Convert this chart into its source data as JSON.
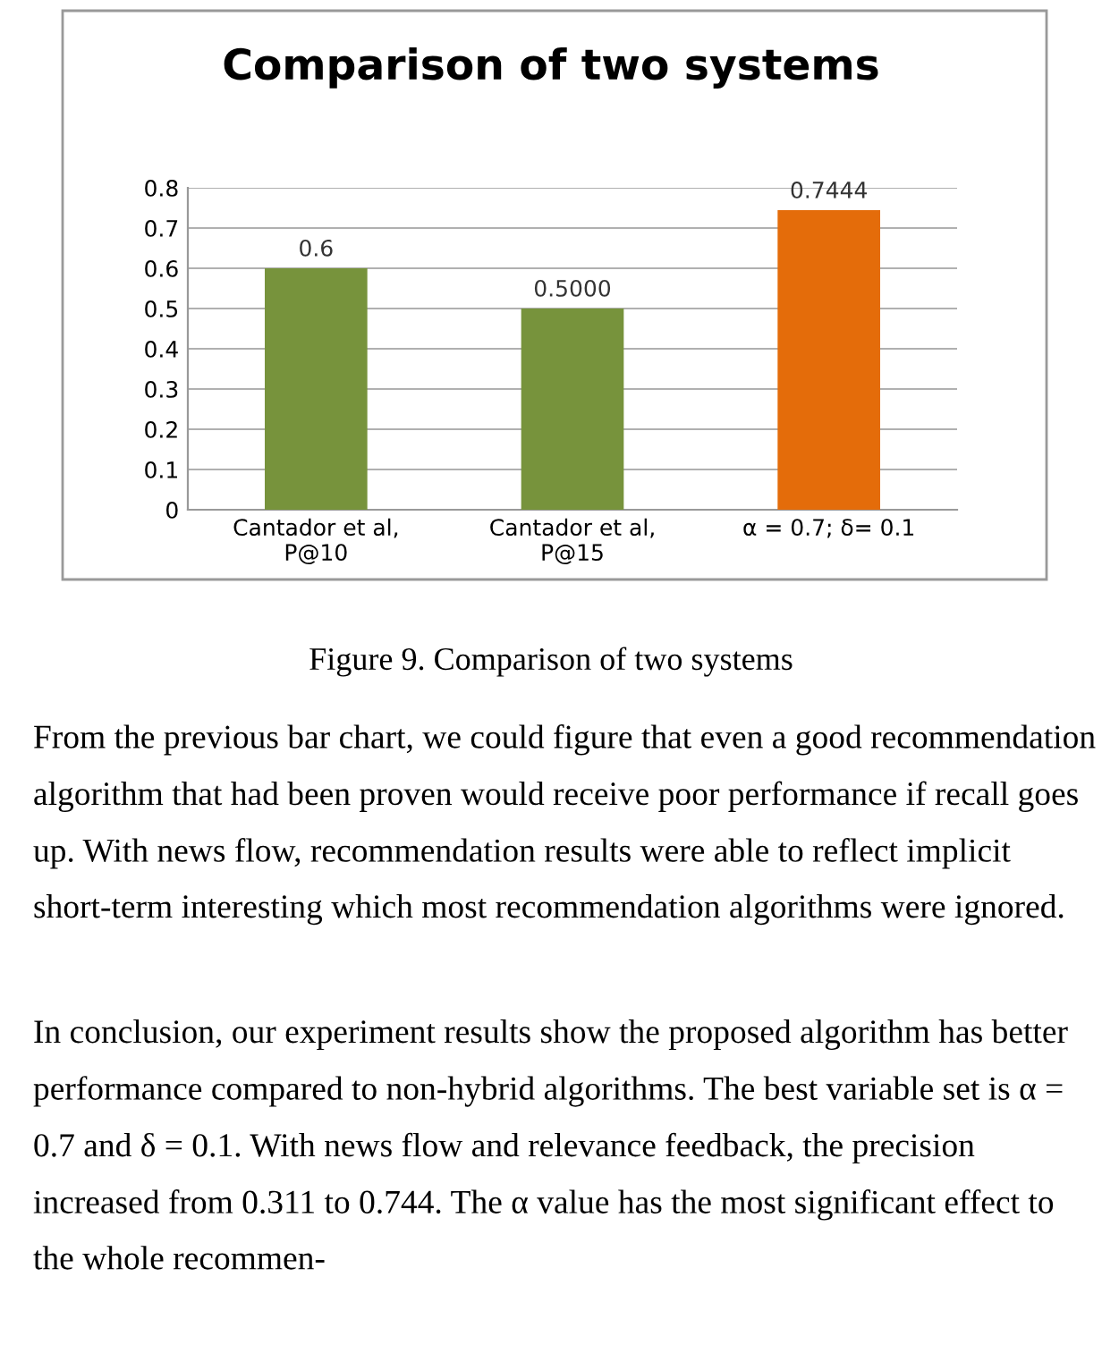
{
  "chart_data": {
    "type": "bar",
    "title": "Comparison of two systems",
    "categories": [
      "Cantador et al,\nP@10",
      "Cantador et al,\nP@15",
      "α = 0.7; δ= 0.1"
    ],
    "values": [
      0.6,
      0.5,
      0.7444
    ],
    "colors": [
      "#77933c",
      "#77933c",
      "#e46c0a"
    ],
    "value_labels": [
      "0.6",
      "0.5000",
      "0.7444"
    ],
    "ylim": [
      0,
      0.8
    ],
    "yticks": [
      0,
      0.1,
      0.2,
      0.3,
      0.4,
      0.5,
      0.6,
      0.7,
      0.8
    ],
    "grid": "y",
    "annotations": [
      "Figure 9. Comparison of two systems",
      "From the previous bar chart, we could figure that even a good recommendation algorithm that had been proven would receive poor performance if recall goes up. With news flow, recommendation results were able to reflect implicit short-term interesting which most recommendation algorithms were ignored.",
      "In conclusion, our experiment results show the proposed algorithm has better performance compared to non-hybrid algorithms. The best variable set is α = 0.7 and δ = 0.1. With news flow and relevance feedback, the precision increased from 0.311 to 0.744. The α value has the most significant effect to the whole recommen-"
    ]
  }
}
